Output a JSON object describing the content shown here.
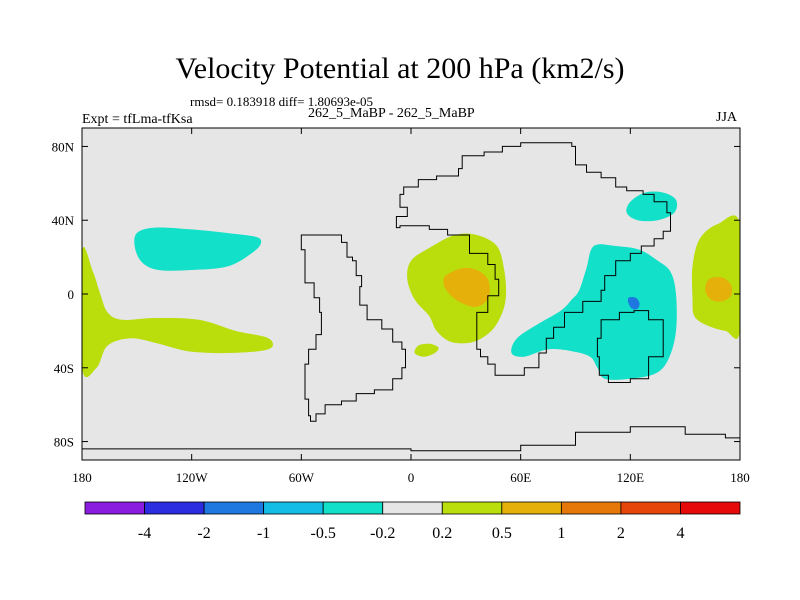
{
  "title": "Velocity Potential at 200 hPa (km2/s)",
  "stats_line": "rmsd= 0.183918 diff= 1.80693e-05",
  "experiment_label": "Expt = tfLma-tfKsa",
  "case_label": "262_5_MaBP - 262_5_MaBP",
  "season_label": "JJA",
  "chart_data": {
    "type": "heatmap",
    "projection": "cylindrical equidistant",
    "xlim": [
      -180,
      180
    ],
    "ylim": [
      -90,
      90
    ],
    "x_ticks": [
      {
        "lon": -180,
        "label": "180"
      },
      {
        "lon": -120,
        "label": "120W"
      },
      {
        "lon": -60,
        "label": "60W"
      },
      {
        "lon": 0,
        "label": "0"
      },
      {
        "lon": 60,
        "label": "60E"
      },
      {
        "lon": 120,
        "label": "120E"
      },
      {
        "lon": 180,
        "label": "180"
      }
    ],
    "y_ticks": [
      {
        "lat": 80,
        "label": "80N"
      },
      {
        "lat": 40,
        "label": "40N"
      },
      {
        "lat": 0,
        "label": "0"
      },
      {
        "lat": -40,
        "label": "40S"
      },
      {
        "lat": -80,
        "label": "80S"
      }
    ],
    "background_color": "#e6e6e6",
    "colorbar": {
      "colors": [
        "#8a1ce0",
        "#2c2ce0",
        "#1e78e0",
        "#14bde6",
        "#12e0c8",
        "#e6e6e6",
        "#b9de0b",
        "#e6b00a",
        "#e6780a",
        "#e6460a",
        "#e60a0a"
      ],
      "labels": [
        "-4",
        "-2",
        "-1",
        "-0.5",
        "-0.2",
        "0.2",
        "0.5",
        "1",
        "2",
        "4"
      ]
    },
    "features": [
      {
        "name": "north-pacific-negative",
        "level": "-0.2",
        "color": "#12e0c8",
        "poly": [
          [
            -150,
            33
          ],
          [
            -140,
            36
          ],
          [
            -120,
            35
          ],
          [
            -100,
            33
          ],
          [
            -85,
            31
          ],
          [
            -82,
            28
          ],
          [
            -86,
            23
          ],
          [
            -100,
            15
          ],
          [
            -120,
            13
          ],
          [
            -138,
            13
          ],
          [
            -147,
            17
          ],
          [
            -151,
            25
          ]
        ]
      },
      {
        "name": "eastern-pacific-positive",
        "level": "0.2",
        "color": "#b9de0b",
        "poly": [
          [
            -180,
            23
          ],
          [
            -174,
            12
          ],
          [
            -170,
            0
          ],
          [
            -166,
            -10
          ],
          [
            -158,
            -14
          ],
          [
            -140,
            -13
          ],
          [
            -116,
            -14
          ],
          [
            -96,
            -20
          ],
          [
            -78,
            -24
          ],
          [
            -78,
            -30
          ],
          [
            -100,
            -32
          ],
          [
            -122,
            -31
          ],
          [
            -138,
            -27
          ],
          [
            -153,
            -24
          ],
          [
            -166,
            -28
          ],
          [
            -172,
            -40
          ],
          [
            -180,
            -40
          ]
        ]
      },
      {
        "name": "africa-positive",
        "level": "0.2",
        "color": "#b9de0b",
        "poly": [
          [
            0,
            18
          ],
          [
            10,
            25
          ],
          [
            24,
            32
          ],
          [
            36,
            32
          ],
          [
            47,
            26
          ],
          [
            51,
            13
          ],
          [
            52,
            0
          ],
          [
            50,
            -10
          ],
          [
            44,
            -20
          ],
          [
            34,
            -26
          ],
          [
            22,
            -26
          ],
          [
            14,
            -20
          ],
          [
            10,
            -12
          ],
          [
            2,
            -3
          ],
          [
            -2,
            8
          ]
        ]
      },
      {
        "name": "africa-core",
        "level": "0.5",
        "color": "#e6b00a",
        "poly": [
          [
            19,
            10
          ],
          [
            28,
            14
          ],
          [
            36,
            13
          ],
          [
            42,
            8
          ],
          [
            43,
            0
          ],
          [
            40,
            -5
          ],
          [
            34,
            -7
          ],
          [
            26,
            -4
          ],
          [
            21,
            0
          ],
          [
            18,
            5
          ]
        ]
      },
      {
        "name": "south-atlantic-blob",
        "level": "0.2",
        "color": "#b9de0b",
        "poly": [
          [
            4,
            -28
          ],
          [
            10,
            -27
          ],
          [
            15,
            -29
          ],
          [
            13,
            -32
          ],
          [
            7,
            -34
          ],
          [
            2,
            -32
          ]
        ]
      },
      {
        "name": "asia-negative",
        "level": "-0.2",
        "color": "#12e0c8",
        "poly": [
          [
            100,
            26
          ],
          [
            112,
            26
          ],
          [
            125,
            24
          ],
          [
            135,
            18
          ],
          [
            142,
            12
          ],
          [
            145,
            0
          ],
          [
            145,
            -20
          ],
          [
            141,
            -35
          ],
          [
            134,
            -43
          ],
          [
            120,
            -46
          ],
          [
            106,
            -46
          ],
          [
            102,
            -40
          ],
          [
            98,
            -34
          ],
          [
            88,
            -31
          ],
          [
            75,
            -30
          ],
          [
            62,
            -34
          ],
          [
            55,
            -32
          ],
          [
            58,
            -24
          ],
          [
            70,
            -16
          ],
          [
            82,
            -9
          ],
          [
            88,
            -3
          ],
          [
            92,
            2
          ],
          [
            96,
            14
          ]
        ]
      },
      {
        "name": "asia-core",
        "level": "-0.5",
        "color": "#1e78e0",
        "poly": [
          [
            119,
            -2
          ],
          [
            123,
            -2
          ],
          [
            125,
            -5
          ],
          [
            124,
            -8
          ],
          [
            121,
            -8
          ],
          [
            119,
            -5
          ]
        ]
      },
      {
        "name": "nw-pacific-negative",
        "level": "-0.2",
        "color": "#12e0c8",
        "poly": [
          [
            120,
            50
          ],
          [
            128,
            55
          ],
          [
            138,
            55
          ],
          [
            145,
            51
          ],
          [
            144,
            44
          ],
          [
            135,
            40
          ],
          [
            124,
            40
          ],
          [
            118,
            44
          ]
        ]
      },
      {
        "name": "west-pacific-positive",
        "level": "0.2",
        "color": "#b9de0b",
        "poly": [
          [
            180,
            38
          ],
          [
            168,
            38
          ],
          [
            158,
            30
          ],
          [
            154,
            15
          ],
          [
            154,
            -2
          ],
          [
            155,
            -12
          ],
          [
            162,
            -17
          ],
          [
            172,
            -20
          ],
          [
            180,
            -20
          ]
        ]
      },
      {
        "name": "west-pacific-core",
        "level": "0.5",
        "color": "#e6b00a",
        "poly": [
          [
            163,
            8
          ],
          [
            170,
            9
          ],
          [
            175,
            5
          ],
          [
            175,
            -1
          ],
          [
            170,
            -4
          ],
          [
            164,
            -3
          ],
          [
            161,
            2
          ]
        ]
      }
    ],
    "continents": [
      {
        "name": "americas-outline",
        "poly": [
          [
            -60,
            32
          ],
          [
            -40,
            32
          ],
          [
            -38,
            28
          ],
          [
            -35,
            20
          ],
          [
            -32,
            18
          ],
          [
            -30,
            10
          ],
          [
            -27,
            4
          ],
          [
            -28,
            -6
          ],
          [
            -24,
            -14
          ],
          [
            -16,
            -19
          ],
          [
            -10,
            -26
          ],
          [
            -5,
            -30
          ],
          [
            -3,
            -40
          ],
          [
            -5,
            -46
          ],
          [
            -10,
            -52
          ],
          [
            -20,
            -54
          ],
          [
            -30,
            -58
          ],
          [
            -38,
            -60
          ],
          [
            -47,
            -65
          ],
          [
            -52,
            -69
          ],
          [
            -55,
            -66
          ],
          [
            -56,
            -57
          ],
          [
            -58,
            -48
          ],
          [
            -58,
            -38
          ],
          [
            -56,
            -30
          ],
          [
            -52,
            -22
          ],
          [
            -49,
            -10
          ],
          [
            -50,
            -2
          ],
          [
            -53,
            6
          ],
          [
            -58,
            12
          ],
          [
            -58,
            24
          ]
        ]
      },
      {
        "name": "europe-africa-asia-outline",
        "poly": [
          [
            -4,
            58
          ],
          [
            4,
            62
          ],
          [
            14,
            64
          ],
          [
            26,
            68
          ],
          [
            28,
            75
          ],
          [
            40,
            77
          ],
          [
            50,
            80
          ],
          [
            60,
            82
          ],
          [
            78,
            82
          ],
          [
            88,
            80
          ],
          [
            90,
            70
          ],
          [
            96,
            66
          ],
          [
            104,
            63
          ],
          [
            112,
            58
          ],
          [
            118,
            56
          ],
          [
            127,
            54
          ],
          [
            133,
            50
          ],
          [
            140,
            44
          ],
          [
            142,
            34
          ],
          [
            138,
            30
          ],
          [
            133,
            26
          ],
          [
            126,
            22
          ],
          [
            120,
            18
          ],
          [
            112,
            10
          ],
          [
            106,
            2
          ],
          [
            104,
            -4
          ],
          [
            94,
            -10
          ],
          [
            84,
            -18
          ],
          [
            78,
            -24
          ],
          [
            74,
            -32
          ],
          [
            70,
            -40
          ],
          [
            62,
            -44
          ],
          [
            52,
            -44
          ],
          [
            46,
            -38
          ],
          [
            42,
            -34
          ],
          [
            38,
            -30
          ],
          [
            36,
            -20
          ],
          [
            36,
            -10
          ],
          [
            42,
            -1
          ],
          [
            48,
            8
          ],
          [
            46,
            16
          ],
          [
            42,
            22
          ],
          [
            32,
            32
          ],
          [
            20,
            35
          ],
          [
            10,
            37
          ],
          [
            3,
            37
          ],
          [
            -6,
            36
          ],
          [
            -8,
            42
          ],
          [
            -2,
            47
          ],
          [
            -6,
            54
          ]
        ]
      },
      {
        "name": "australia-outline",
        "poly": [
          [
            104,
            -14
          ],
          [
            114,
            -10
          ],
          [
            122,
            -9
          ],
          [
            130,
            -14
          ],
          [
            138,
            -24
          ],
          [
            138,
            -34
          ],
          [
            130,
            -46
          ],
          [
            120,
            -48
          ],
          [
            108,
            -44
          ],
          [
            103,
            -34
          ],
          [
            102,
            -24
          ]
        ]
      },
      {
        "name": "antarctica-outline",
        "poly": [
          [
            -180,
            -84
          ],
          [
            -120,
            -84
          ],
          [
            -60,
            -84
          ],
          [
            0,
            -85
          ],
          [
            60,
            -82
          ],
          [
            90,
            -75
          ],
          [
            120,
            -72
          ],
          [
            150,
            -76
          ],
          [
            172,
            -78
          ],
          [
            180,
            -82
          ],
          [
            180,
            -90
          ],
          [
            -180,
            -90
          ]
        ]
      }
    ]
  }
}
